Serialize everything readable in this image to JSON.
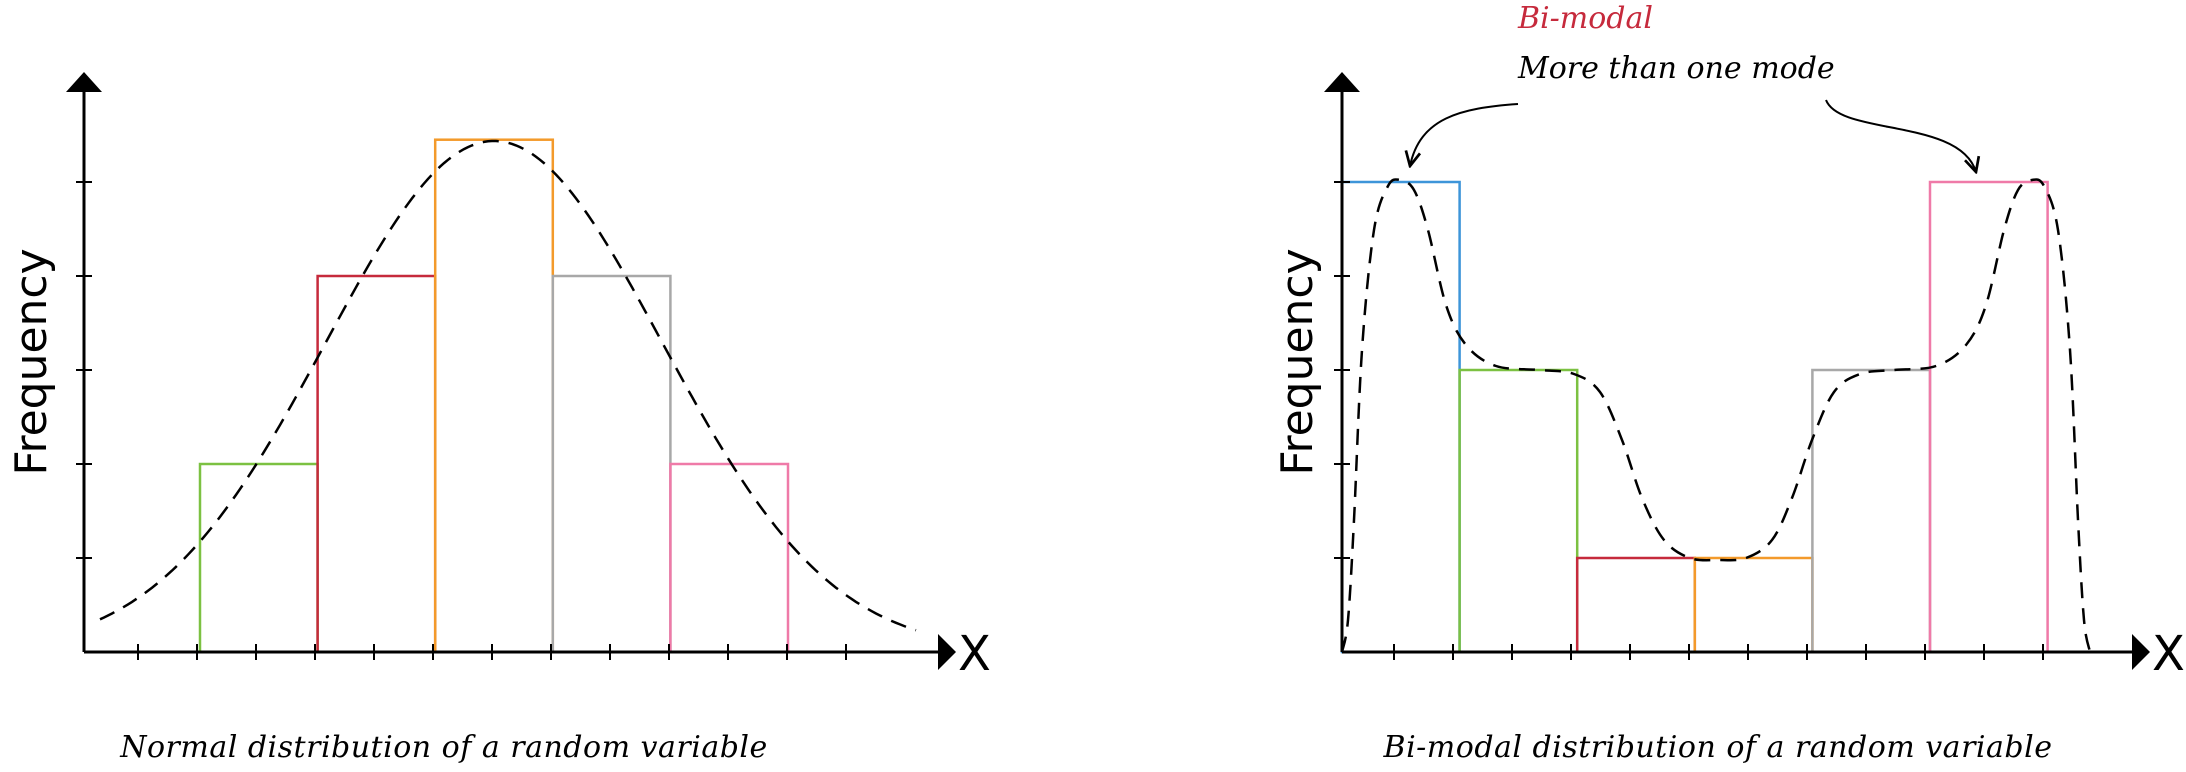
{
  "chart_data": [
    {
      "type": "bar",
      "caption": "Normal distribution of a random variable",
      "xlabel": "X",
      "ylabel": "Frequency",
      "ylim": [
        0,
        6
      ],
      "yticks": [
        1,
        2,
        3,
        4,
        5
      ],
      "values": [
        2,
        4,
        5.45,
        4,
        2
      ],
      "colors": [
        "#7cc142",
        "#c62a3c",
        "#f39a2b",
        "#a8a8a8",
        "#ef7aa8"
      ],
      "curve": "dashed normal density envelope"
    },
    {
      "type": "bar",
      "caption": "Bi-modal distribution of a random variable",
      "xlabel": "X",
      "ylabel": "Frequency",
      "ylim": [
        0,
        6
      ],
      "yticks": [
        1,
        2,
        3,
        4,
        5
      ],
      "values": [
        5,
        3,
        1,
        1,
        3,
        5
      ],
      "colors": [
        "#3d95d9",
        "#7cc142",
        "#c62a3c",
        "#f39a2b",
        "#a8a8a8",
        "#ef7aa8"
      ],
      "curve": "dashed bi-modal density envelope",
      "annotation": {
        "title": "Bi-modal",
        "text": "More than one mode"
      }
    }
  ]
}
